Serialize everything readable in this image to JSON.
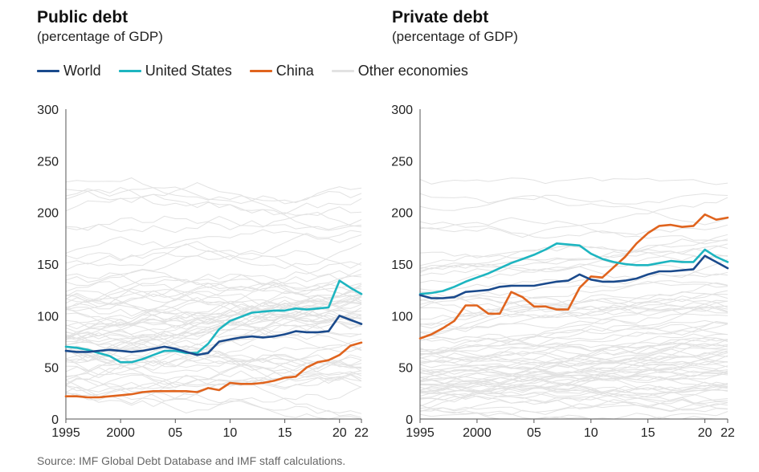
{
  "colors": {
    "world": "#1a4a8c",
    "united_states": "#1db5c0",
    "china": "#e0641e",
    "other": "#e2e2e2",
    "axis": "#555555"
  },
  "legend": [
    {
      "label": "World",
      "color": "#1a4a8c"
    },
    {
      "label": "United States",
      "color": "#1db5c0"
    },
    {
      "label": "China",
      "color": "#e0641e"
    },
    {
      "label": "Other economies",
      "color": "#e2e2e2"
    }
  ],
  "source": "Source: IMF Global Debt Database and IMF staff calculations.",
  "chart_data": [
    {
      "type": "line",
      "title": "Public debt",
      "subtitle": "(percentage of GDP)",
      "ylim": [
        0,
        300
      ],
      "yticks": [
        "0",
        "50",
        "100",
        "150",
        "200",
        "250",
        "300"
      ],
      "xlim": [
        1995,
        2022
      ],
      "xticks": [
        {
          "value": 1995,
          "label": "1995"
        },
        {
          "value": 2000,
          "label": "2000"
        },
        {
          "value": 2005,
          "label": "05"
        },
        {
          "value": 2010,
          "label": "10"
        },
        {
          "value": 2015,
          "label": "15"
        },
        {
          "value": 2020,
          "label": "20"
        },
        {
          "value": 2022,
          "label": "22"
        }
      ],
      "x": [
        1995,
        1996,
        1997,
        1998,
        1999,
        2000,
        2001,
        2002,
        2003,
        2004,
        2005,
        2006,
        2007,
        2008,
        2009,
        2010,
        2011,
        2012,
        2013,
        2014,
        2015,
        2016,
        2017,
        2018,
        2019,
        2020,
        2021,
        2022
      ],
      "series": [
        {
          "name": "World",
          "key": "world",
          "values": [
            66,
            65,
            65,
            66,
            67,
            66,
            65,
            66,
            68,
            70,
            68,
            65,
            62,
            64,
            75,
            77,
            79,
            80,
            79,
            80,
            82,
            85,
            84,
            84,
            85,
            100,
            96,
            92
          ]
        },
        {
          "name": "United States",
          "key": "united_states",
          "values": [
            70,
            69,
            67,
            64,
            61,
            55,
            55,
            58,
            62,
            66,
            66,
            64,
            64,
            73,
            87,
            95,
            99,
            103,
            104,
            105,
            105,
            107,
            106,
            107,
            108,
            134,
            127,
            121
          ]
        },
        {
          "name": "China",
          "key": "china",
          "values": [
            22,
            22,
            21,
            21,
            22,
            23,
            24,
            26,
            27,
            27,
            27,
            27,
            26,
            30,
            28,
            35,
            34,
            34,
            35,
            37,
            40,
            41,
            50,
            55,
            57,
            62,
            71,
            74
          ]
        }
      ],
      "other_economies_shown": true,
      "grid": false
    },
    {
      "type": "line",
      "title": "Private debt",
      "subtitle": "(percentage of GDP)",
      "ylim": [
        0,
        300
      ],
      "yticks": [
        "0",
        "50",
        "100",
        "150",
        "200",
        "250",
        "300"
      ],
      "xlim": [
        1995,
        2022
      ],
      "xticks": [
        {
          "value": 1995,
          "label": "1995"
        },
        {
          "value": 2000,
          "label": "2000"
        },
        {
          "value": 2005,
          "label": "05"
        },
        {
          "value": 2010,
          "label": "10"
        },
        {
          "value": 2015,
          "label": "15"
        },
        {
          "value": 2020,
          "label": "20"
        },
        {
          "value": 2022,
          "label": "22"
        }
      ],
      "x": [
        1995,
        1996,
        1997,
        1998,
        1999,
        2000,
        2001,
        2002,
        2003,
        2004,
        2005,
        2006,
        2007,
        2008,
        2009,
        2010,
        2011,
        2012,
        2013,
        2014,
        2015,
        2016,
        2017,
        2018,
        2019,
        2020,
        2021,
        2022
      ],
      "series": [
        {
          "name": "World",
          "key": "world",
          "values": [
            120,
            117,
            117,
            118,
            123,
            124,
            125,
            128,
            129,
            129,
            129,
            131,
            133,
            134,
            140,
            135,
            133,
            133,
            134,
            136,
            140,
            143,
            143,
            144,
            145,
            158,
            152,
            146
          ]
        },
        {
          "name": "United States",
          "key": "united_states",
          "values": [
            121,
            122,
            124,
            128,
            133,
            137,
            141,
            146,
            151,
            155,
            159,
            164,
            170,
            169,
            168,
            160,
            155,
            152,
            150,
            149,
            149,
            151,
            153,
            152,
            152,
            164,
            157,
            152
          ]
        },
        {
          "name": "China",
          "key": "china",
          "values": [
            78,
            82,
            88,
            95,
            110,
            110,
            102,
            102,
            123,
            118,
            109,
            109,
            106,
            106,
            127,
            138,
            137,
            147,
            157,
            170,
            180,
            187,
            188,
            186,
            187,
            198,
            193,
            195
          ]
        }
      ],
      "other_economies_shown": true,
      "grid": false
    }
  ]
}
